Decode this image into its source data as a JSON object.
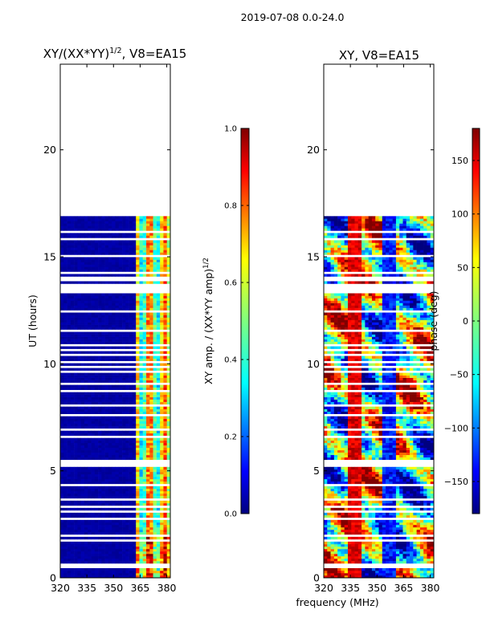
{
  "suptitle": "2019-07-08 0.0-24.0",
  "shared_xlabel": "frequency (MHz)",
  "chart_data": [
    {
      "type": "heatmap",
      "title_main": "XY/(XX*YY)",
      "title_sup": "1/2",
      "title_tail": ", V8=EA15",
      "xlabel": "",
      "ylabel": "UT (hours)",
      "xlim": [
        320,
        382
      ],
      "ylim": [
        0,
        24
      ],
      "xticks": [
        320,
        335,
        350,
        365,
        380
      ],
      "yticks": [
        0,
        5,
        10,
        15,
        20
      ],
      "data_extent_hours": [
        0.0,
        16.9
      ],
      "colorbar": {
        "label_main": "XY amp. / (XX*YY amp)",
        "label_sup": "1/2",
        "range": [
          0.0,
          1.0
        ],
        "ticks": [
          "0.0",
          "0.2",
          "0.4",
          "0.6",
          "0.8",
          "1.0"
        ],
        "tick_values": [
          0.0,
          0.2,
          0.4,
          0.6,
          0.8,
          1.0
        ]
      }
    },
    {
      "type": "heatmap",
      "title_main": "XY, V8=EA15",
      "xlabel": "frequency (MHz)",
      "ylabel": "",
      "xlim": [
        320,
        382
      ],
      "ylim": [
        0,
        24
      ],
      "xticks": [
        320,
        335,
        350,
        365,
        380
      ],
      "yticks": [
        0,
        5,
        10,
        15,
        20
      ],
      "data_extent_hours": [
        0.0,
        16.9
      ],
      "colorbar": {
        "label_main": "phase (deg)",
        "range": [
          -180,
          180
        ],
        "ticks": [
          "−150",
          "−100",
          "−50",
          "0",
          "50",
          "100",
          "150"
        ],
        "tick_values": [
          -150,
          -100,
          -50,
          0,
          50,
          100,
          150
        ]
      }
    }
  ],
  "flagged_hour_bands": [
    [
      0.42,
      0.62
    ],
    [
      1.0,
      1.06
    ],
    [
      1.33,
      1.38
    ],
    [
      1.72,
      1.78
    ],
    [
      1.86,
      2.08
    ],
    [
      2.72,
      2.8
    ],
    [
      3.08,
      3.14
    ],
    [
      3.32,
      3.38
    ],
    [
      3.48,
      3.54
    ],
    [
      3.65,
      3.72
    ],
    [
      4.02,
      4.07
    ],
    [
      4.32,
      4.38
    ],
    [
      4.68,
      4.74
    ],
    [
      5.2,
      5.55
    ],
    [
      5.75,
      5.8
    ],
    [
      6.55,
      6.62
    ],
    [
      6.92,
      7.02
    ],
    [
      7.58,
      7.64
    ],
    [
      8.02,
      8.08
    ],
    [
      8.42,
      8.48
    ],
    [
      8.72,
      8.78
    ],
    [
      9.02,
      9.08
    ],
    [
      9.32,
      9.38
    ],
    [
      9.58,
      9.64
    ],
    [
      9.82,
      9.88
    ],
    [
      10.05,
      10.11
    ],
    [
      10.22,
      10.28
    ],
    [
      10.42,
      10.48
    ],
    [
      10.62,
      10.68
    ],
    [
      10.82,
      10.88
    ],
    [
      11.52,
      11.58
    ],
    [
      12.12,
      12.18
    ],
    [
      12.42,
      12.48
    ],
    [
      13.05,
      13.1
    ],
    [
      13.32,
      13.42
    ],
    [
      13.45,
      13.75
    ],
    [
      13.88,
      14.05
    ],
    [
      14.22,
      14.3
    ],
    [
      14.62,
      14.68
    ],
    [
      15.02,
      15.08
    ],
    [
      15.42,
      15.48
    ],
    [
      15.82,
      15.88
    ],
    [
      16.15,
      16.2
    ],
    [
      16.32,
      16.38
    ],
    [
      16.62,
      16.68
    ]
  ]
}
